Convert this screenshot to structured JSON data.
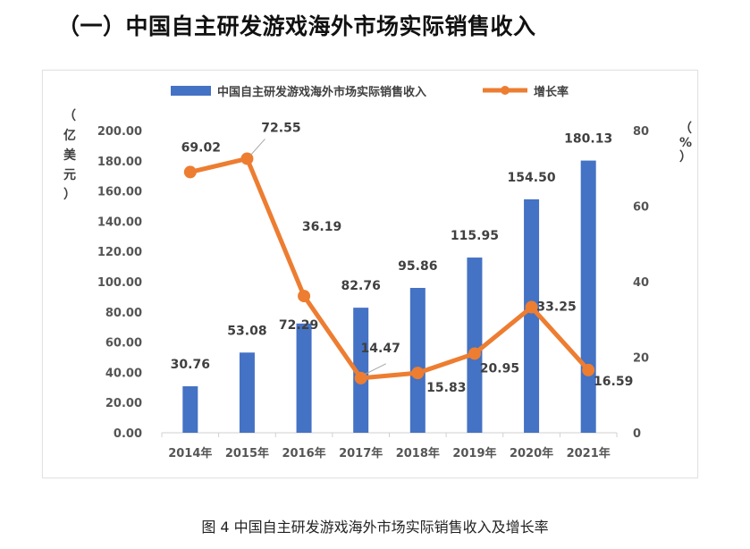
{
  "heading": "（一）中国自主研发游戏海外市场实际销售收入",
  "caption": "图 4 中国自主研发游戏海外市场实际销售收入及增长率",
  "chart_data": {
    "type": "bar+line",
    "categories": [
      "2014年",
      "2015年",
      "2016年",
      "2017年",
      "2018年",
      "2019年",
      "2020年",
      "2021年"
    ],
    "series": [
      {
        "name": "中国自主研发游戏海外市场实际销售收入",
        "type": "bar",
        "axis": "left",
        "values": [
          30.76,
          53.08,
          72.29,
          82.76,
          95.86,
          115.95,
          154.5,
          180.13
        ],
        "labels": [
          "30.76",
          "53.08",
          "72.29",
          "82.76",
          "95.86",
          "115.95",
          "154.50",
          "180.13"
        ],
        "color": "#4472C4"
      },
      {
        "name": "增长率",
        "type": "line",
        "axis": "right",
        "values": [
          69.02,
          72.55,
          36.19,
          14.47,
          15.83,
          20.95,
          33.25,
          16.59
        ],
        "labels": [
          "69.02",
          "72.55",
          "36.19",
          "14.47",
          "15.83",
          "20.95",
          "33.25",
          "16.59"
        ],
        "color": "#ED7D31"
      }
    ],
    "y_left": {
      "label": [
        "（",
        "亿",
        "美",
        "元",
        "）"
      ],
      "lim": [
        0,
        200
      ],
      "ticks": [
        "0.00",
        "20.00",
        "40.00",
        "60.00",
        "80.00",
        "100.00",
        "120.00",
        "140.00",
        "160.00",
        "180.00",
        "200.00"
      ]
    },
    "y_right": {
      "label": [
        "（",
        "%",
        "）"
      ],
      "lim": [
        0,
        80
      ],
      "ticks": [
        "0",
        "20",
        "40",
        "60",
        "80"
      ]
    },
    "legend_position": "top"
  }
}
